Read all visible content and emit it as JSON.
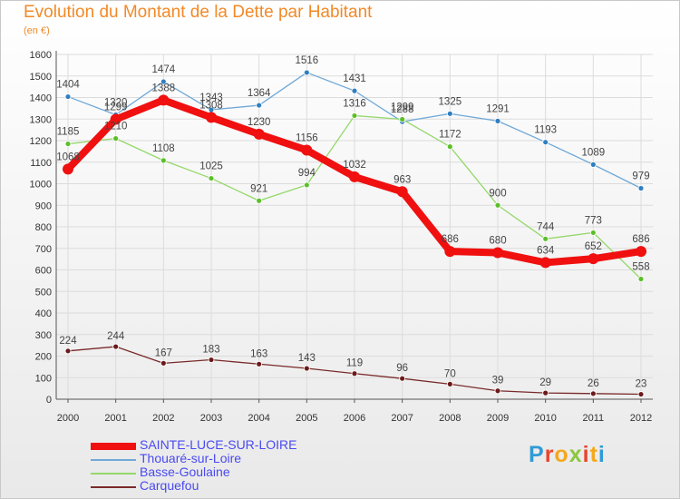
{
  "title": "Evolution du Montant de la Dette par Habitant",
  "subtitle": "(en €)",
  "logo": {
    "text": "Proxiti",
    "colors": [
      "#2f9bd6",
      "#e8452c",
      "#f4a81d",
      "#8cc63f",
      "#e8452c",
      "#f4a81d",
      "#2f9bd6"
    ]
  },
  "chart_data": {
    "type": "line",
    "x": [
      "2000",
      "2001",
      "2002",
      "2003",
      "2004",
      "2005",
      "2006",
      "2007",
      "2008",
      "2009",
      "2010",
      "2011",
      "2012"
    ],
    "ylim": [
      0,
      1600
    ],
    "yticks": [
      0,
      100,
      200,
      300,
      400,
      500,
      600,
      700,
      800,
      900,
      1000,
      1100,
      1200,
      1300,
      1400,
      1500,
      1600
    ],
    "grid": true,
    "legend_position": "bottom-left",
    "series": [
      {
        "name": "Thouaré-sur-Loire",
        "color": "#6fa8d8",
        "marker": "#2f7fc1",
        "values": [
          1404,
          1320,
          1474,
          1343,
          1364,
          1516,
          1431,
          1288,
          1325,
          1291,
          1193,
          1089,
          979
        ]
      },
      {
        "name": "Basse-Goulaine",
        "color": "#94d86a",
        "marker": "#5cbf2a",
        "values": [
          1185,
          1210,
          1108,
          1025,
          921,
          994,
          1316,
          1299,
          1172,
          900,
          744,
          773,
          558
        ]
      },
      {
        "name": "Carquefou",
        "color": "#7a2a2a",
        "marker": "#6b1a1a",
        "values": [
          224,
          244,
          167,
          183,
          163,
          143,
          119,
          96,
          70,
          39,
          29,
          26,
          23
        ]
      },
      {
        "name": "SAINTE-LUCE-SUR-LOIRE",
        "color": "#f01010",
        "marker": "#f01010",
        "values": [
          1068,
          1299,
          1388,
          1308,
          1230,
          1156,
          1032,
          963,
          686,
          680,
          634,
          652,
          686
        ],
        "highlight": true
      }
    ],
    "legend_order": [
      "SAINTE-LUCE-SUR-LOIRE",
      "Thouaré-sur-Loire",
      "Basse-Goulaine",
      "Carquefou"
    ],
    "legend_colors": {
      "SAINTE-LUCE-SUR-LOIRE": "#4a4af0",
      "other": "#4a4af0"
    }
  }
}
